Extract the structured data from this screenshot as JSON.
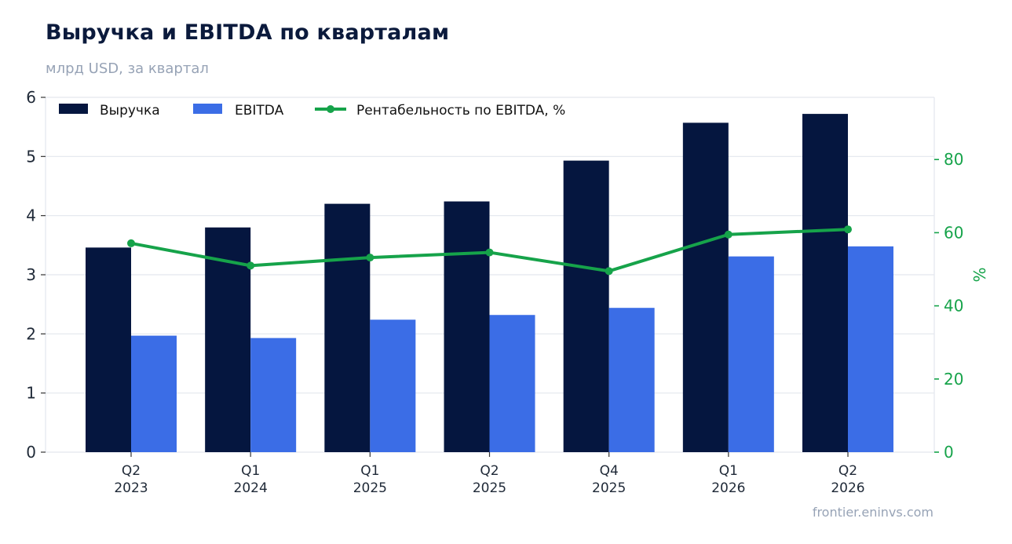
{
  "header": {
    "title": "Выручка и EBITDA по кварталам",
    "subtitle": "млрд USD, за квартал"
  },
  "footer": {
    "source": "frontier.eninvs.com"
  },
  "colors": {
    "revenue": "#05163f",
    "ebitda": "#3b6de6",
    "margin": "#16a34a",
    "grid": "#e3e7ee",
    "axis_text": "#1f2937"
  },
  "chart_data": {
    "type": "bar",
    "categories": [
      "Q2\n2023",
      "Q1\n2024",
      "Q1\n2025",
      "Q2\n2025",
      "Q4\n2025",
      "Q1\n2026",
      "Q2\n2026"
    ],
    "series": [
      {
        "name": "Выручка",
        "type": "bar",
        "axis": "left",
        "values": [
          3.46,
          3.8,
          4.2,
          4.24,
          4.93,
          5.57,
          5.72
        ]
      },
      {
        "name": "EBITDA",
        "type": "bar",
        "axis": "left",
        "values": [
          1.97,
          1.93,
          2.24,
          2.32,
          2.44,
          3.31,
          3.48
        ]
      },
      {
        "name": "Рентабельность по EBITDA, %",
        "type": "line",
        "axis": "right",
        "values": [
          57.1,
          51.0,
          53.2,
          54.6,
          49.5,
          59.5,
          60.9
        ]
      }
    ],
    "y_left": {
      "min": 0,
      "max": 6,
      "ticks": [
        0,
        1,
        2,
        3,
        4,
        5,
        6
      ]
    },
    "y_right": {
      "min": 0,
      "max": 97,
      "ticks": [
        0,
        20,
        40,
        60,
        80
      ],
      "label": "%"
    },
    "grid": true,
    "legend_position": "top-left"
  }
}
